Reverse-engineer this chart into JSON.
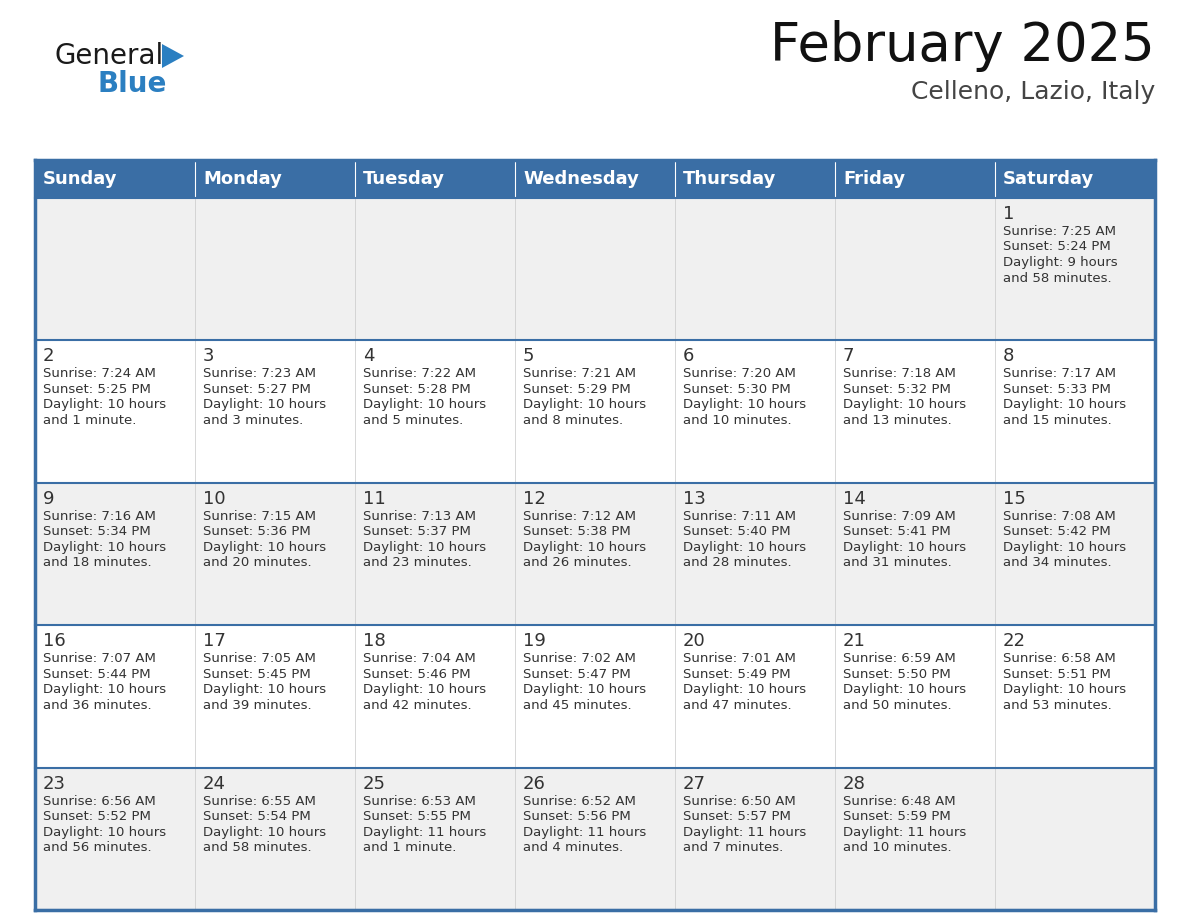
{
  "title": "February 2025",
  "subtitle": "Celleno, Lazio, Italy",
  "header_bg": "#3a6ea5",
  "header_text_color": "#ffffff",
  "row_bg_odd": "#f0f0f0",
  "row_bg_even": "#ffffff",
  "border_color": "#3a6ea5",
  "cell_border_color": "#c0c8d8",
  "day_headers": [
    "Sunday",
    "Monday",
    "Tuesday",
    "Wednesday",
    "Thursday",
    "Friday",
    "Saturday"
  ],
  "days": [
    {
      "day": 1,
      "col": 6,
      "row": 0,
      "sunrise": "7:25 AM",
      "sunset": "5:24 PM",
      "daylight": "9 hours and 58 minutes."
    },
    {
      "day": 2,
      "col": 0,
      "row": 1,
      "sunrise": "7:24 AM",
      "sunset": "5:25 PM",
      "daylight": "10 hours and 1 minute."
    },
    {
      "day": 3,
      "col": 1,
      "row": 1,
      "sunrise": "7:23 AM",
      "sunset": "5:27 PM",
      "daylight": "10 hours and 3 minutes."
    },
    {
      "day": 4,
      "col": 2,
      "row": 1,
      "sunrise": "7:22 AM",
      "sunset": "5:28 PM",
      "daylight": "10 hours and 5 minutes."
    },
    {
      "day": 5,
      "col": 3,
      "row": 1,
      "sunrise": "7:21 AM",
      "sunset": "5:29 PM",
      "daylight": "10 hours and 8 minutes."
    },
    {
      "day": 6,
      "col": 4,
      "row": 1,
      "sunrise": "7:20 AM",
      "sunset": "5:30 PM",
      "daylight": "10 hours and 10 minutes."
    },
    {
      "day": 7,
      "col": 5,
      "row": 1,
      "sunrise": "7:18 AM",
      "sunset": "5:32 PM",
      "daylight": "10 hours and 13 minutes."
    },
    {
      "day": 8,
      "col": 6,
      "row": 1,
      "sunrise": "7:17 AM",
      "sunset": "5:33 PM",
      "daylight": "10 hours and 15 minutes."
    },
    {
      "day": 9,
      "col": 0,
      "row": 2,
      "sunrise": "7:16 AM",
      "sunset": "5:34 PM",
      "daylight": "10 hours and 18 minutes."
    },
    {
      "day": 10,
      "col": 1,
      "row": 2,
      "sunrise": "7:15 AM",
      "sunset": "5:36 PM",
      "daylight": "10 hours and 20 minutes."
    },
    {
      "day": 11,
      "col": 2,
      "row": 2,
      "sunrise": "7:13 AM",
      "sunset": "5:37 PM",
      "daylight": "10 hours and 23 minutes."
    },
    {
      "day": 12,
      "col": 3,
      "row": 2,
      "sunrise": "7:12 AM",
      "sunset": "5:38 PM",
      "daylight": "10 hours and 26 minutes."
    },
    {
      "day": 13,
      "col": 4,
      "row": 2,
      "sunrise": "7:11 AM",
      "sunset": "5:40 PM",
      "daylight": "10 hours and 28 minutes."
    },
    {
      "day": 14,
      "col": 5,
      "row": 2,
      "sunrise": "7:09 AM",
      "sunset": "5:41 PM",
      "daylight": "10 hours and 31 minutes."
    },
    {
      "day": 15,
      "col": 6,
      "row": 2,
      "sunrise": "7:08 AM",
      "sunset": "5:42 PM",
      "daylight": "10 hours and 34 minutes."
    },
    {
      "day": 16,
      "col": 0,
      "row": 3,
      "sunrise": "7:07 AM",
      "sunset": "5:44 PM",
      "daylight": "10 hours and 36 minutes."
    },
    {
      "day": 17,
      "col": 1,
      "row": 3,
      "sunrise": "7:05 AM",
      "sunset": "5:45 PM",
      "daylight": "10 hours and 39 minutes."
    },
    {
      "day": 18,
      "col": 2,
      "row": 3,
      "sunrise": "7:04 AM",
      "sunset": "5:46 PM",
      "daylight": "10 hours and 42 minutes."
    },
    {
      "day": 19,
      "col": 3,
      "row": 3,
      "sunrise": "7:02 AM",
      "sunset": "5:47 PM",
      "daylight": "10 hours and 45 minutes."
    },
    {
      "day": 20,
      "col": 4,
      "row": 3,
      "sunrise": "7:01 AM",
      "sunset": "5:49 PM",
      "daylight": "10 hours and 47 minutes."
    },
    {
      "day": 21,
      "col": 5,
      "row": 3,
      "sunrise": "6:59 AM",
      "sunset": "5:50 PM",
      "daylight": "10 hours and 50 minutes."
    },
    {
      "day": 22,
      "col": 6,
      "row": 3,
      "sunrise": "6:58 AM",
      "sunset": "5:51 PM",
      "daylight": "10 hours and 53 minutes."
    },
    {
      "day": 23,
      "col": 0,
      "row": 4,
      "sunrise": "6:56 AM",
      "sunset": "5:52 PM",
      "daylight": "10 hours and 56 minutes."
    },
    {
      "day": 24,
      "col": 1,
      "row": 4,
      "sunrise": "6:55 AM",
      "sunset": "5:54 PM",
      "daylight": "10 hours and 58 minutes."
    },
    {
      "day": 25,
      "col": 2,
      "row": 4,
      "sunrise": "6:53 AM",
      "sunset": "5:55 PM",
      "daylight": "11 hours and 1 minute."
    },
    {
      "day": 26,
      "col": 3,
      "row": 4,
      "sunrise": "6:52 AM",
      "sunset": "5:56 PM",
      "daylight": "11 hours and 4 minutes."
    },
    {
      "day": 27,
      "col": 4,
      "row": 4,
      "sunrise": "6:50 AM",
      "sunset": "5:57 PM",
      "daylight": "11 hours and 7 minutes."
    },
    {
      "day": 28,
      "col": 5,
      "row": 4,
      "sunrise": "6:48 AM",
      "sunset": "5:59 PM",
      "daylight": "11 hours and 10 minutes."
    }
  ],
  "num_rows": 5,
  "logo_text_general": "General",
  "logo_text_blue": "Blue",
  "logo_triangle_color": "#2b7fc1",
  "logo_general_color": "#1a1a1a",
  "logo_blue_color": "#2b7fc1",
  "title_fontsize": 38,
  "subtitle_fontsize": 18,
  "header_fontsize": 13,
  "day_num_fontsize": 13,
  "cell_fontsize": 9.5
}
